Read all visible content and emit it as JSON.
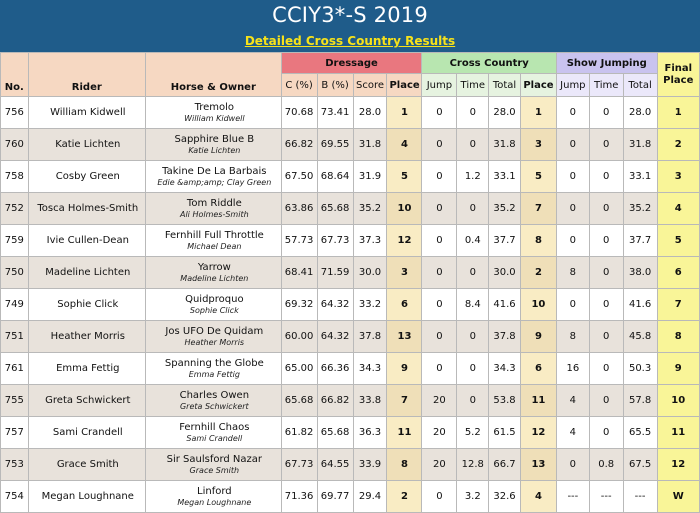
{
  "page": {
    "title": "CCIY3*-S 2019",
    "subtitle": "Detailed Cross Country Results"
  },
  "headers": {
    "no": "No.",
    "rider": "Rider",
    "horse_owner": "Horse & Owner",
    "dressage": "Dressage",
    "cross_country": "Cross Country",
    "show_jumping": "Show Jumping",
    "final_place": "Final Place",
    "d_c": "C (%)",
    "d_b": "B (%)",
    "d_score": "Score",
    "d_place": "Place",
    "x_jump": "Jump",
    "x_time": "Time",
    "x_total": "Total",
    "x_place": "Place",
    "s_jump": "Jump",
    "s_time": "Time",
    "s_total": "Total"
  },
  "rows": [
    {
      "no": "756",
      "rider": "William Kidwell",
      "horse": "Tremolo",
      "owner": "William Kidwell",
      "c": "70.68",
      "b": "73.41",
      "score": "28.0",
      "dplace": "1",
      "xjump": "0",
      "xtime": "0",
      "xtotal": "28.0",
      "xplace": "1",
      "sjump": "0",
      "stime": "0",
      "stotal": "28.0",
      "final": "1"
    },
    {
      "no": "760",
      "rider": "Katie Lichten",
      "horse": "Sapphire Blue B",
      "owner": "Katie Lichten",
      "c": "66.82",
      "b": "69.55",
      "score": "31.8",
      "dplace": "4",
      "xjump": "0",
      "xtime": "0",
      "xtotal": "31.8",
      "xplace": "3",
      "sjump": "0",
      "stime": "0",
      "stotal": "31.8",
      "final": "2"
    },
    {
      "no": "758",
      "rider": "Cosby Green",
      "horse": "Takine De La Barbais",
      "owner": "Edie &amp;amp; Clay Green",
      "c": "67.50",
      "b": "68.64",
      "score": "31.9",
      "dplace": "5",
      "xjump": "0",
      "xtime": "1.2",
      "xtotal": "33.1",
      "xplace": "5",
      "sjump": "0",
      "stime": "0",
      "stotal": "33.1",
      "final": "3"
    },
    {
      "no": "752",
      "rider": "Tosca Holmes-Smith",
      "horse": "Tom Riddle",
      "owner": "Ali Holmes-Smith",
      "c": "63.86",
      "b": "65.68",
      "score": "35.2",
      "dplace": "10",
      "xjump": "0",
      "xtime": "0",
      "xtotal": "35.2",
      "xplace": "7",
      "sjump": "0",
      "stime": "0",
      "stotal": "35.2",
      "final": "4"
    },
    {
      "no": "759",
      "rider": "Ivie Cullen-Dean",
      "horse": "Fernhill Full Throttle",
      "owner": "Michael Dean",
      "c": "57.73",
      "b": "67.73",
      "score": "37.3",
      "dplace": "12",
      "xjump": "0",
      "xtime": "0.4",
      "xtotal": "37.7",
      "xplace": "8",
      "sjump": "0",
      "stime": "0",
      "stotal": "37.7",
      "final": "5"
    },
    {
      "no": "750",
      "rider": "Madeline Lichten",
      "horse": "Yarrow",
      "owner": "Madeline Lichten",
      "c": "68.41",
      "b": "71.59",
      "score": "30.0",
      "dplace": "3",
      "xjump": "0",
      "xtime": "0",
      "xtotal": "30.0",
      "xplace": "2",
      "sjump": "8",
      "stime": "0",
      "stotal": "38.0",
      "final": "6"
    },
    {
      "no": "749",
      "rider": "Sophie Click",
      "horse": "Quidproquo",
      "owner": "Sophie Click",
      "c": "69.32",
      "b": "64.32",
      "score": "33.2",
      "dplace": "6",
      "xjump": "0",
      "xtime": "8.4",
      "xtotal": "41.6",
      "xplace": "10",
      "sjump": "0",
      "stime": "0",
      "stotal": "41.6",
      "final": "7"
    },
    {
      "no": "751",
      "rider": "Heather Morris",
      "horse": "Jos UFO De Quidam",
      "owner": "Heather Morris",
      "c": "60.00",
      "b": "64.32",
      "score": "37.8",
      "dplace": "13",
      "xjump": "0",
      "xtime": "0",
      "xtotal": "37.8",
      "xplace": "9",
      "sjump": "8",
      "stime": "0",
      "stotal": "45.8",
      "final": "8"
    },
    {
      "no": "761",
      "rider": "Emma Fettig",
      "horse": "Spanning the Globe",
      "owner": "Emma Fettig",
      "c": "65.00",
      "b": "66.36",
      "score": "34.3",
      "dplace": "9",
      "xjump": "0",
      "xtime": "0",
      "xtotal": "34.3",
      "xplace": "6",
      "sjump": "16",
      "stime": "0",
      "stotal": "50.3",
      "final": "9"
    },
    {
      "no": "755",
      "rider": "Greta Schwickert",
      "horse": "Charles Owen",
      "owner": "Greta Schwickert",
      "c": "65.68",
      "b": "66.82",
      "score": "33.8",
      "dplace": "7",
      "xjump": "20",
      "xtime": "0",
      "xtotal": "53.8",
      "xplace": "11",
      "sjump": "4",
      "stime": "0",
      "stotal": "57.8",
      "final": "10"
    },
    {
      "no": "757",
      "rider": "Sami Crandell",
      "horse": "Fernhill Chaos",
      "owner": "Sami Crandell",
      "c": "61.82",
      "b": "65.68",
      "score": "36.3",
      "dplace": "11",
      "xjump": "20",
      "xtime": "5.2",
      "xtotal": "61.5",
      "xplace": "12",
      "sjump": "4",
      "stime": "0",
      "stotal": "65.5",
      "final": "11"
    },
    {
      "no": "753",
      "rider": "Grace Smith",
      "horse": "Sir Saulsford Nazar",
      "owner": "Grace Smith",
      "c": "67.73",
      "b": "64.55",
      "score": "33.9",
      "dplace": "8",
      "xjump": "20",
      "xtime": "12.8",
      "xtotal": "66.7",
      "xplace": "13",
      "sjump": "0",
      "stime": "0.8",
      "stotal": "67.5",
      "final": "12"
    },
    {
      "no": "754",
      "rider": "Megan Loughnane",
      "horse": "Linford",
      "owner": "Megan Loughnane",
      "c": "71.36",
      "b": "69.77",
      "score": "29.4",
      "dplace": "2",
      "xjump": "0",
      "xtime": "3.2",
      "xtotal": "32.6",
      "xplace": "4",
      "sjump": "---",
      "stime": "---",
      "stotal": "---",
      "final": "W"
    }
  ]
}
